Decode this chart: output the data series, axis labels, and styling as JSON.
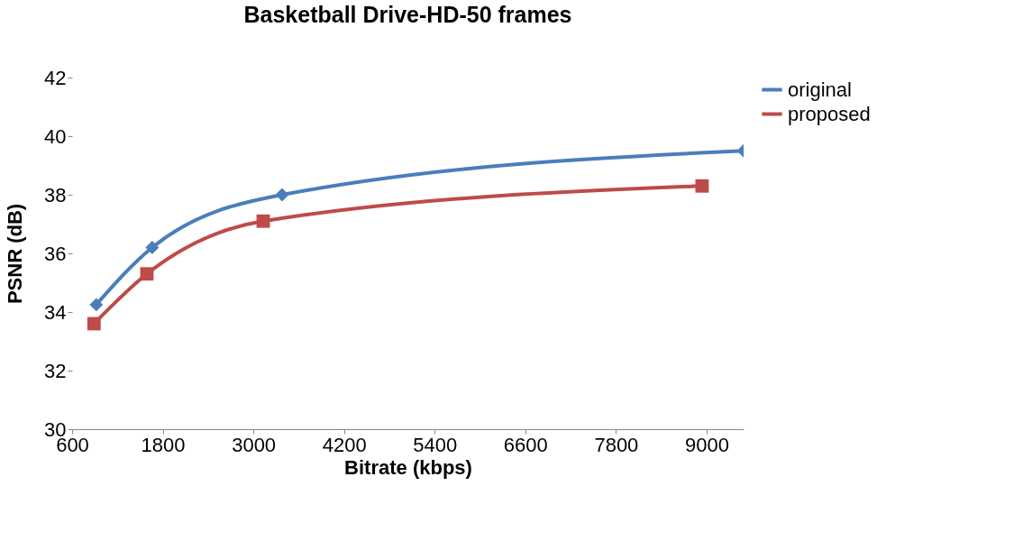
{
  "chart_data": {
    "type": "line",
    "title": "Basketball Drive-HD-50 frames",
    "xlabel": "Bitrate (kbps)",
    "ylabel": "PSNR (dB)",
    "series": [
      {
        "name": "original",
        "color": "#4a7ebb",
        "marker": "diamond",
        "x": [
          920,
          1660,
          3380,
          9490
        ],
        "values": [
          34.25,
          36.2,
          38.0,
          39.5
        ]
      },
      {
        "name": "proposed",
        "color": "#be4b48",
        "marker": "square",
        "x": [
          890,
          1590,
          3130,
          8940
        ],
        "values": [
          33.6,
          35.3,
          37.1,
          38.3
        ]
      }
    ],
    "xlim": [
      600,
      9490
    ],
    "xticks": [
      600,
      1800,
      3000,
      4200,
      5400,
      6600,
      7800,
      9000
    ],
    "ylim": [
      30,
      42
    ],
    "yticks": [
      30,
      32,
      34,
      36,
      38,
      40,
      42
    ],
    "grid": false,
    "legend": "right",
    "line_style": "solid"
  }
}
